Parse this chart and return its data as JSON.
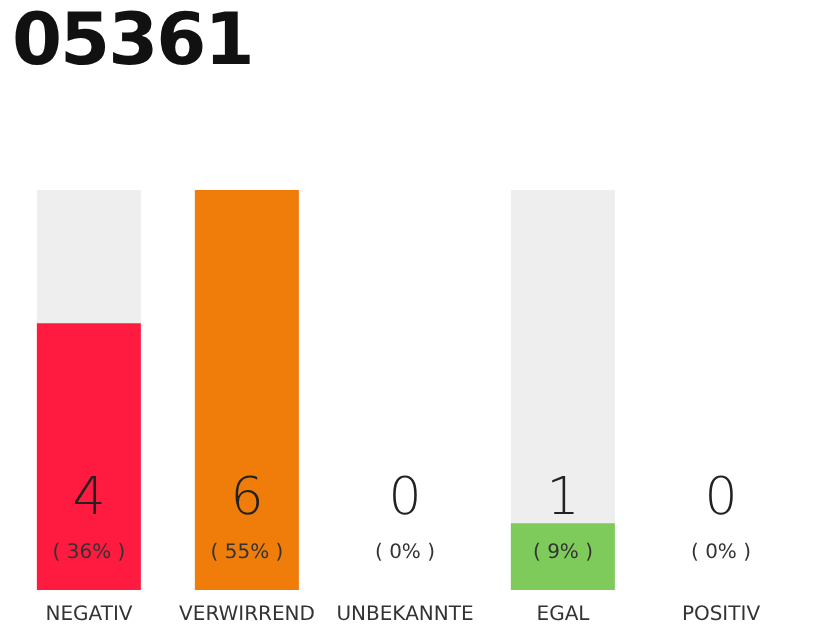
{
  "chart_data": {
    "type": "bar",
    "title": "05361",
    "categories": [
      "NEGATIV",
      "VERWIRREND",
      "UNBEKANNTE",
      "EGAL",
      "POSITIV"
    ],
    "values": [
      4,
      6,
      0,
      1,
      0
    ],
    "colors": [
      "#ff1a40",
      "#f07d0a",
      "#cccccc",
      "#7ecb5c",
      "#cccccc"
    ],
    "data_labels": true,
    "annotations": [
      "( 36% )",
      "( 55% )",
      "( 0% )",
      "( 9% )",
      "( 0% )"
    ],
    "ylim": [
      0,
      6
    ],
    "tick_labels": "x"
  }
}
